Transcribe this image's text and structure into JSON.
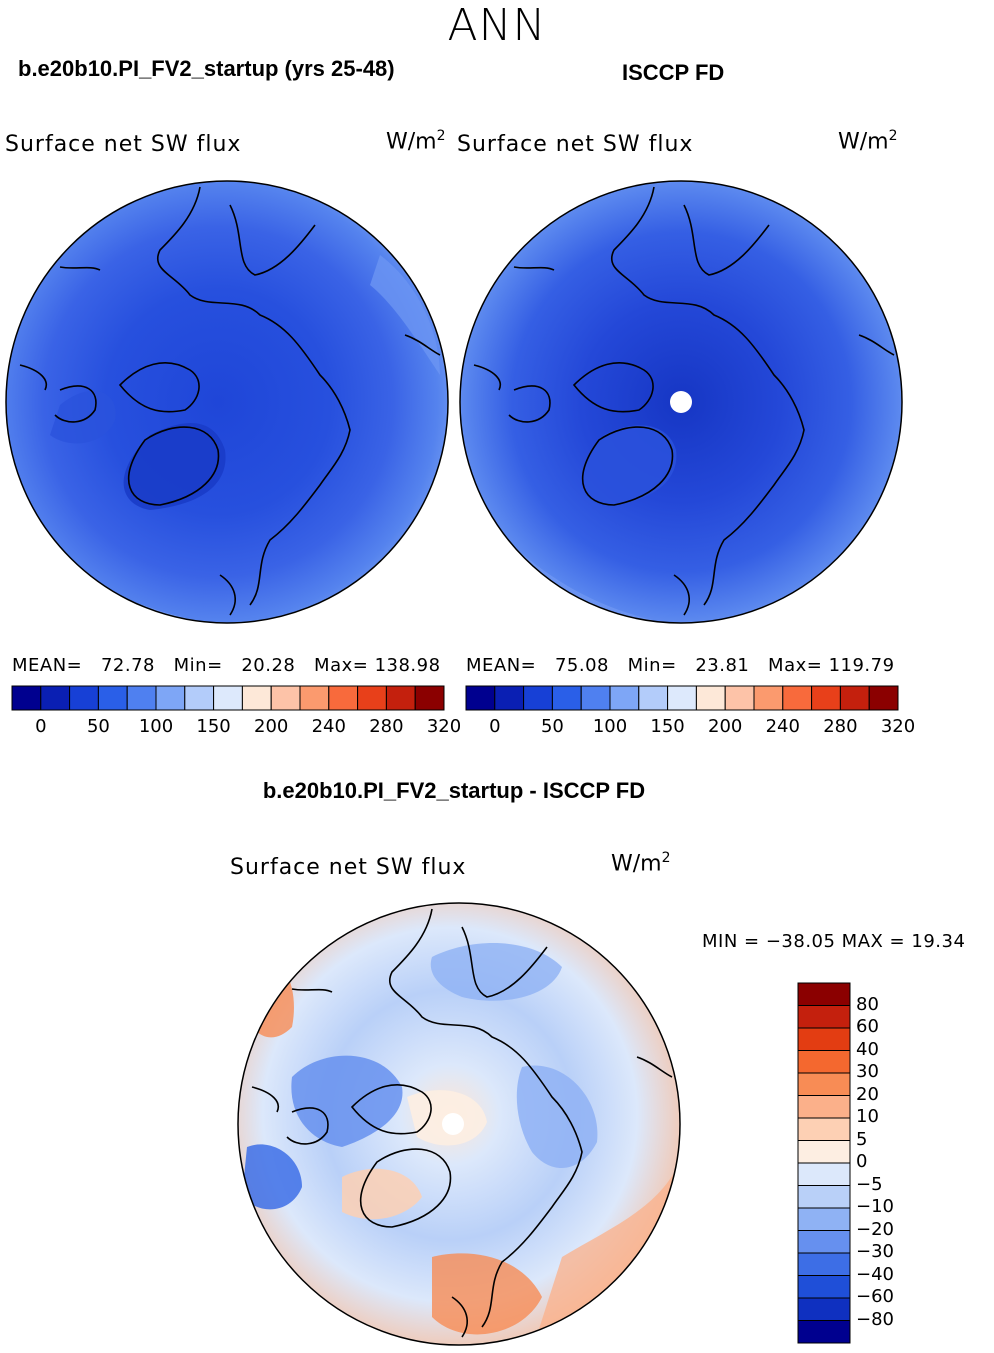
{
  "figure": {
    "season": "ANN",
    "diff_title": "b.e20b10.PI_FV2_startup - ISCCP FD"
  },
  "chart_data": [
    {
      "type": "polar-contour-map",
      "title": "b.e20b10.PI_FV2_startup (yrs 25-48)",
      "variable": "Surface net SW flux",
      "units": "W/m",
      "units_exp": "2",
      "stats": {
        "mean_label": "MEAN=",
        "mean": "72.78",
        "min_label": "Min=",
        "min": "20.28",
        "max_label": "Max=",
        "max": "138.98"
      },
      "levels": [
        0,
        25,
        50,
        75,
        100,
        125,
        150,
        175,
        200,
        220,
        240,
        260,
        280,
        300,
        320
      ],
      "colorbar_labels": [
        "0",
        "50",
        "100",
        "150",
        "200",
        "240",
        "280",
        "320"
      ],
      "colorbar_colors": [
        "#00008f",
        "#0a1fb3",
        "#1740d6",
        "#2a5fe8",
        "#4f80f0",
        "#7ea6f6",
        "#b3ccfa",
        "#dde9fc",
        "#fde8d8",
        "#fdc3a8",
        "#fb9a6e",
        "#f86a3c",
        "#e8401a",
        "#c4200d",
        "#8b0000"
      ]
    },
    {
      "type": "polar-contour-map",
      "title": "ISCCP FD",
      "variable": "Surface net SW flux",
      "units": "W/m",
      "units_exp": "2",
      "stats": {
        "mean_label": "MEAN=",
        "mean": "75.08",
        "min_label": "Min=",
        "min": "23.81",
        "max_label": "Max=",
        "max": "119.79"
      },
      "levels": [
        0,
        25,
        50,
        75,
        100,
        125,
        150,
        175,
        200,
        220,
        240,
        260,
        280,
        300,
        320
      ],
      "colorbar_labels": [
        "0",
        "50",
        "100",
        "150",
        "200",
        "240",
        "280",
        "320"
      ],
      "colorbar_colors": [
        "#00008f",
        "#0a1fb3",
        "#1740d6",
        "#2a5fe8",
        "#4f80f0",
        "#7ea6f6",
        "#b3ccfa",
        "#dde9fc",
        "#fde8d8",
        "#fdc3a8",
        "#fb9a6e",
        "#f86a3c",
        "#e8401a",
        "#c4200d",
        "#8b0000"
      ]
    },
    {
      "type": "polar-contour-map",
      "title": "b.e20b10.PI_FV2_startup - ISCCP FD",
      "variable": "Surface net SW flux",
      "units": "W/m",
      "units_exp": "2",
      "minmax_label": "MIN = −38.05  MAX =   19.34",
      "min": -38.05,
      "max": 19.34,
      "colorbar_labels": [
        "80",
        "60",
        "40",
        "30",
        "20",
        "10",
        "5",
        "0",
        "−5",
        "−10",
        "−20",
        "−30",
        "−40",
        "−60",
        "−80"
      ],
      "colorbar_colors": [
        "#8b0000",
        "#c4200d",
        "#e33d12",
        "#f4682f",
        "#f88c55",
        "#fbb08a",
        "#fdd0b4",
        "#fdeee2",
        "#dce8fb",
        "#b9d0f8",
        "#8fb2f4",
        "#6690ef",
        "#3d6ee6",
        "#1f4fd8",
        "#0f30c0",
        "#00008f"
      ]
    }
  ]
}
